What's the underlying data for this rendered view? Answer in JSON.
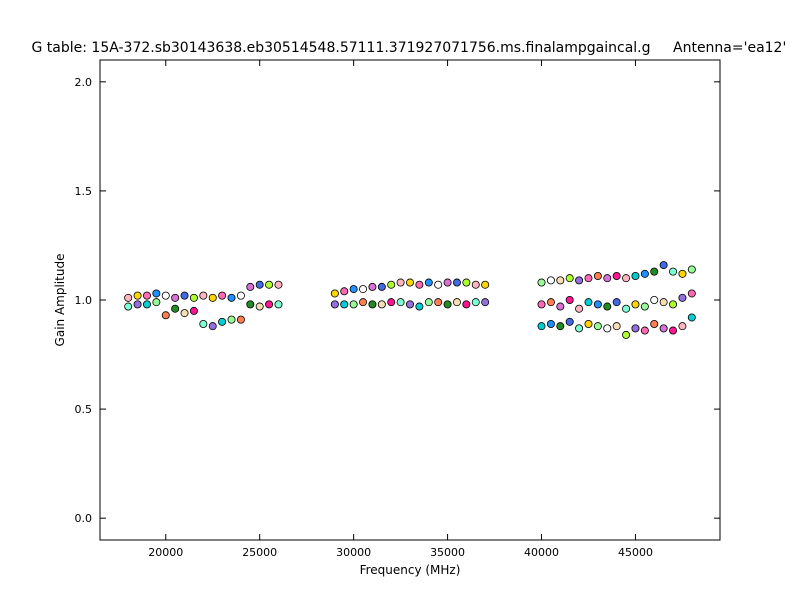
{
  "chart_data": {
    "type": "scatter",
    "title": "G table: 15A-372.sb30143638.eb30514548.57111.371927071756.ms.finalampgaincal.g",
    "annotation": "Antenna='ea12'",
    "x_label": "Frequency (MHz)",
    "y_label": "Gain Amplitude",
    "xlim": [
      16500,
      49500
    ],
    "xticks": [
      20000,
      25000,
      30000,
      35000,
      40000,
      45000
    ],
    "ylim": [
      -0.1,
      2.1
    ],
    "yticks": [
      {
        "value": 0,
        "label": "0.0"
      },
      0.5,
      {
        "value": 1,
        "label": "1.0"
      },
      1.5,
      {
        "value": 2,
        "label": "2.0"
      }
    ],
    "colors": [
      "#7fffd4",
      "#ffb6c1",
      "#9370db",
      "#ffd700",
      "#00ced1",
      "#ff69b4",
      "#98fb98",
      "#1e90ff",
      "#ff7f50",
      "#ffffff",
      "#228b22",
      "#da70d6",
      "#f5deb3",
      "#4169e1",
      "#ff1493",
      "#adff2f"
    ],
    "x": [
      18000,
      18000,
      18500,
      18500,
      19000,
      19000,
      19500,
      19500,
      20000,
      20000,
      20500,
      20500,
      21000,
      21000,
      21500,
      21500,
      22000,
      22000,
      22500,
      22500,
      23000,
      23000,
      23500,
      23500,
      24000,
      24000,
      24500,
      24500,
      25000,
      25000,
      25500,
      25500,
      26000,
      26000,
      29000,
      29000,
      29500,
      29500,
      30000,
      30000,
      30500,
      30500,
      31000,
      31000,
      31500,
      31500,
      32000,
      32000,
      32500,
      32500,
      33000,
      33000,
      33500,
      33500,
      34000,
      34000,
      34500,
      34500,
      35000,
      35000,
      35500,
      35500,
      36000,
      36000,
      36500,
      36500,
      37000,
      37000,
      40000,
      40000,
      40000,
      40500,
      40500,
      40500,
      41000,
      41000,
      41000,
      41500,
      41500,
      41500,
      42000,
      42000,
      42000,
      42500,
      42500,
      42500,
      43000,
      43000,
      43000,
      43500,
      43500,
      43500,
      44000,
      44000,
      44000,
      44500,
      44500,
      44500,
      45000,
      45000,
      45000,
      45500,
      45500,
      45500,
      46000,
      46000,
      46000,
      46500,
      46500,
      46500,
      47000,
      47000,
      47000,
      47500,
      47500,
      47500,
      48000,
      48000,
      48000
    ],
    "values": [
      0.97,
      1.01,
      0.98,
      1.02,
      0.98,
      1.02,
      0.99,
      1.03,
      0.93,
      1.02,
      0.96,
      1.01,
      0.94,
      1.02,
      0.95,
      1.01,
      0.89,
      1.02,
      0.88,
      1.01,
      0.9,
      1.02,
      0.91,
      1.01,
      0.91,
      1.02,
      0.98,
      1.06,
      0.97,
      1.07,
      0.98,
      1.07,
      0.98,
      1.07,
      0.98,
      1.03,
      0.98,
      1.04,
      0.98,
      1.05,
      0.99,
      1.05,
      0.98,
      1.06,
      0.98,
      1.06,
      0.99,
      1.07,
      0.99,
      1.08,
      0.98,
      1.08,
      0.97,
      1.07,
      0.99,
      1.08,
      0.99,
      1.07,
      0.98,
      1.08,
      0.99,
      1.08,
      0.98,
      1.08,
      0.99,
      1.07,
      0.99,
      1.07,
      0.88,
      0.98,
      1.08,
      0.89,
      0.99,
      1.09,
      0.88,
      0.97,
      1.09,
      0.9,
      1.0,
      1.1,
      0.87,
      0.96,
      1.09,
      0.89,
      0.99,
      1.1,
      0.88,
      0.98,
      1.11,
      0.87,
      0.97,
      1.1,
      0.88,
      0.99,
      1.11,
      0.84,
      0.96,
      1.1,
      0.87,
      0.98,
      1.11,
      0.86,
      0.97,
      1.12,
      0.89,
      1.0,
      1.13,
      0.87,
      0.99,
      1.16,
      0.86,
      0.98,
      1.13,
      0.88,
      1.01,
      1.12,
      0.92,
      1.03,
      1.14
    ]
  }
}
